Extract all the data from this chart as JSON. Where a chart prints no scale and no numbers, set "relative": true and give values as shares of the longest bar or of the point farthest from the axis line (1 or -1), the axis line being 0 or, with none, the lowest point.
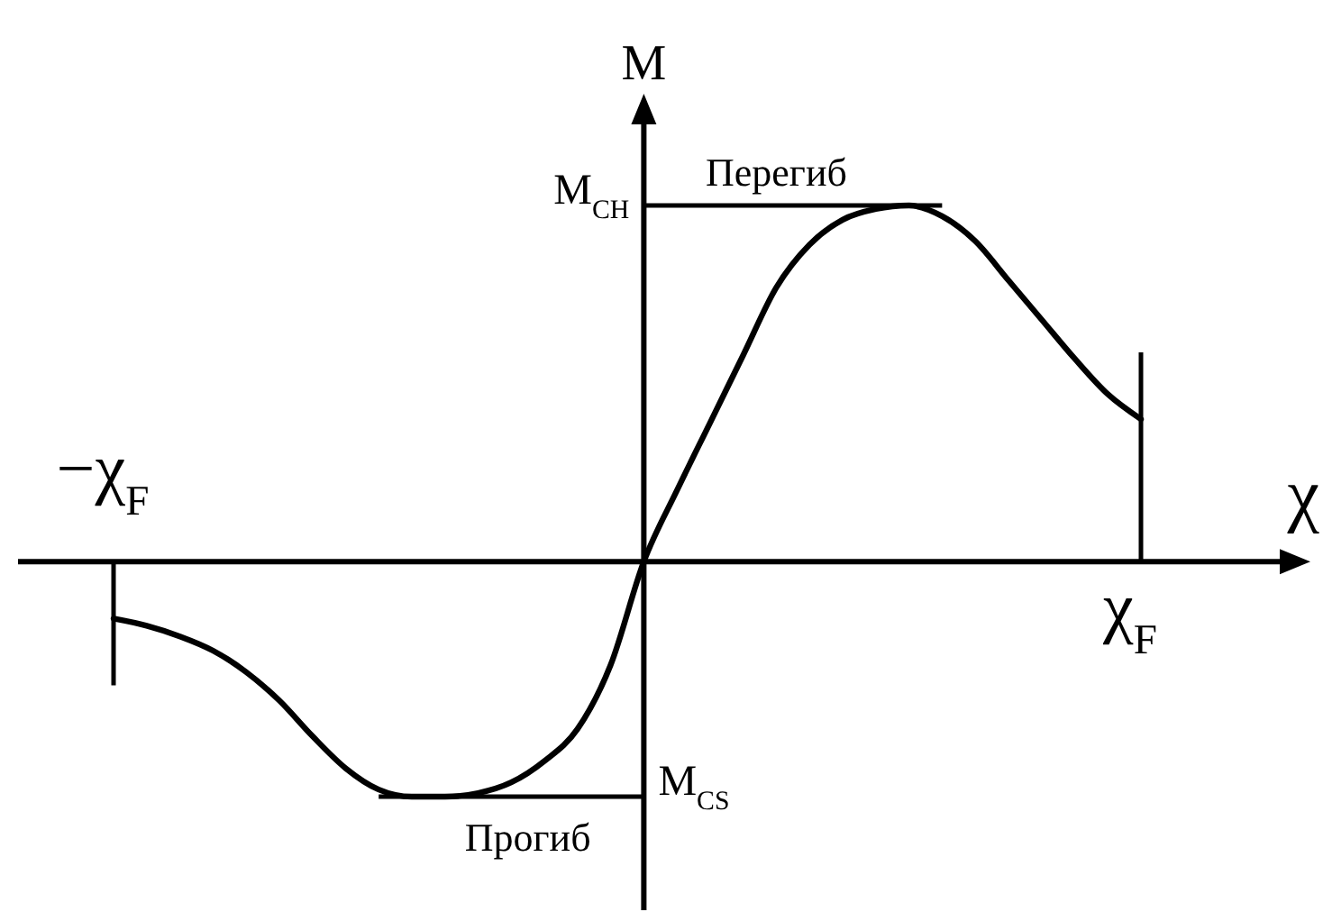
{
  "chart_data": {
    "type": "line",
    "xlabel": "χ",
    "ylabel": "M",
    "relative": true,
    "line_style": "solid",
    "categories": [
      null,
      null,
      null,
      null,
      null,
      null,
      null,
      null,
      null,
      null,
      null,
      null,
      null,
      null,
      null,
      null,
      null,
      null,
      null,
      null,
      null,
      null,
      null,
      null,
      null,
      null,
      null,
      null,
      null,
      null,
      null,
      null
    ],
    "series": [
      {
        "color": "#000000",
        "values": [
          -0.16,
          -0.18,
          -0.21,
          -0.25,
          -0.31,
          -0.39,
          -0.49,
          -0.58,
          -0.64,
          -0.66,
          -0.66,
          -0.65,
          -0.62,
          -0.56,
          -0.47,
          -0.29,
          0,
          0.2,
          0.39,
          0.58,
          0.77,
          0.89,
          0.96,
          0.99,
          1,
          0.97,
          0.9,
          0.79,
          0.68,
          0.57,
          0.47,
          0.4
        ]
      }
    ],
    "ref_lines": [
      {
        "axis": "y",
        "value": 1,
        "label": "M$_{CH}$"
      },
      {
        "axis": "y",
        "value": -0.66,
        "label": "M$_{CS}$"
      }
    ],
    "annotations": [
      {
        "text": "Перегиб",
        "y": 1
      },
      {
        "text": "Прогиб",
        "y": -0.66
      },
      "−χ$_{F}$",
      "χ$_{F}$"
    ]
  }
}
